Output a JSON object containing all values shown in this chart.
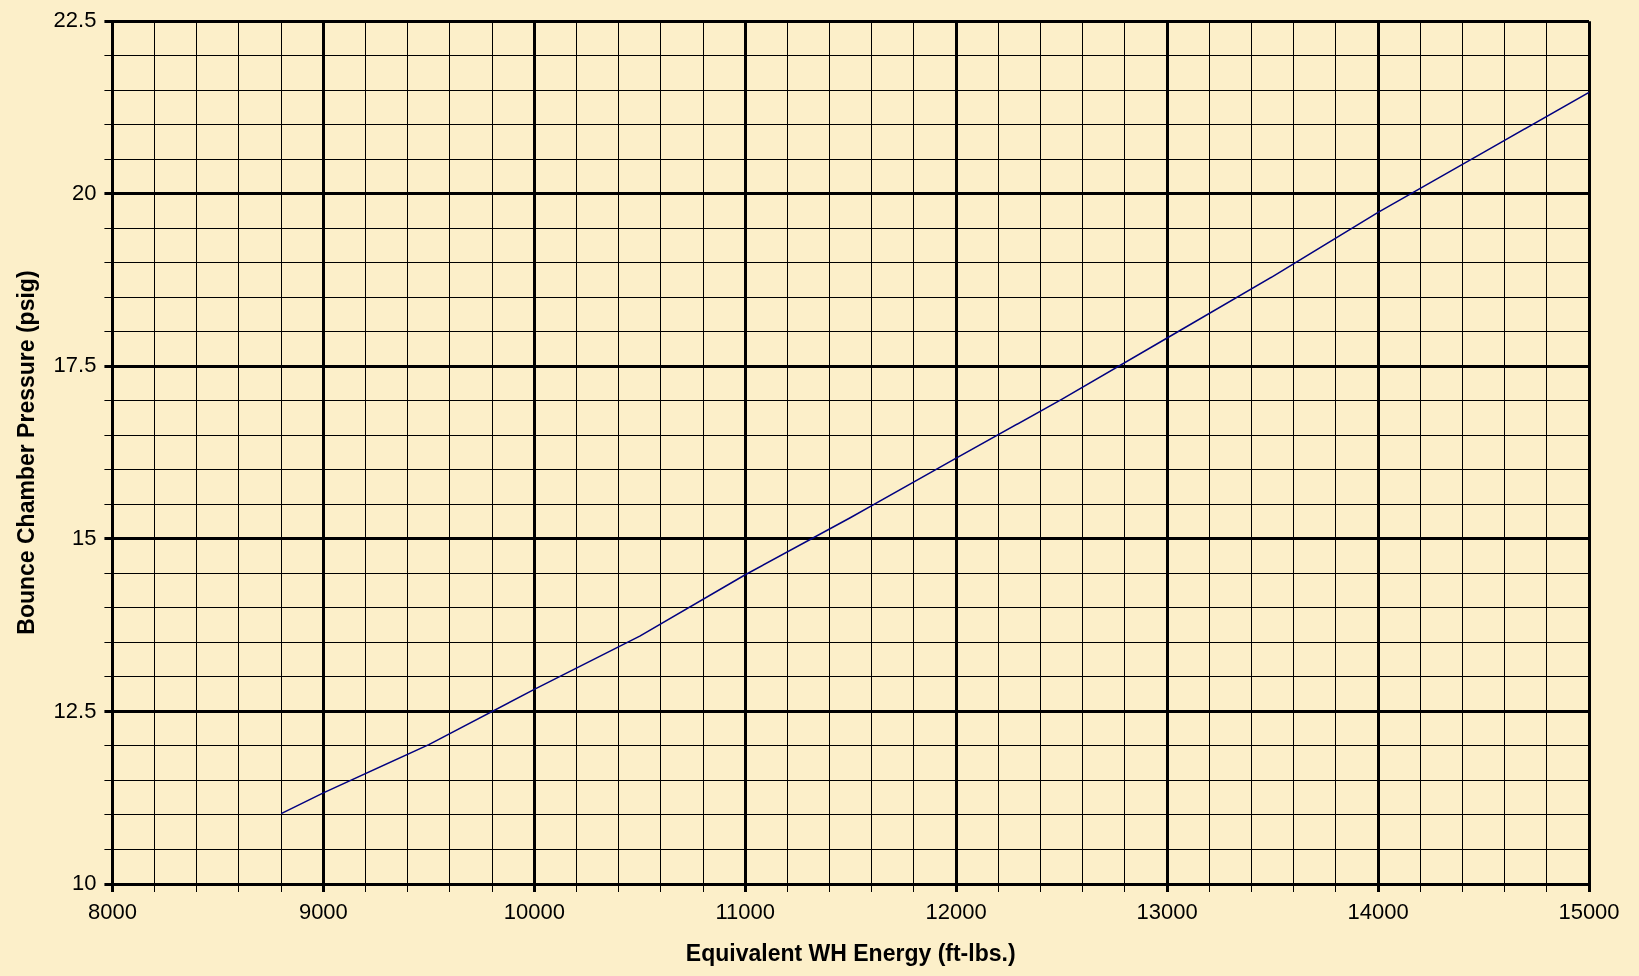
{
  "chart_data": {
    "type": "line",
    "xlabel": "Equivalent WH Energy (ft-lbs.)",
    "ylabel": "Bounce Chamber Pressure (psig)",
    "x": [
      8800,
      9000,
      9500,
      10000,
      10500,
      11000,
      11500,
      12000,
      12500,
      13000,
      13500,
      14000,
      14500,
      15000
    ],
    "series": [
      {
        "color": "#000080",
        "values": [
          11.02,
          11.32,
          12.02,
          12.82,
          13.59,
          14.48,
          15.31,
          16.17,
          17.02,
          17.91,
          18.8,
          19.73,
          20.6,
          21.47
        ]
      }
    ],
    "xlim": [
      8000,
      15000
    ],
    "xticks": [
      8000,
      {
        "value": 8200,
        "label": null
      },
      {
        "value": 8400,
        "label": null
      },
      {
        "value": 8600,
        "label": null
      },
      {
        "value": 8800,
        "label": null
      },
      9000,
      {
        "value": 9200,
        "label": null
      },
      {
        "value": 9400,
        "label": null
      },
      {
        "value": 9600,
        "label": null
      },
      {
        "value": 9800,
        "label": null
      },
      10000,
      {
        "value": 10200,
        "label": null
      },
      {
        "value": 10400,
        "label": null
      },
      {
        "value": 10600,
        "label": null
      },
      {
        "value": 10800,
        "label": null
      },
      11000,
      {
        "value": 11200,
        "label": null
      },
      {
        "value": 11400,
        "label": null
      },
      {
        "value": 11600,
        "label": null
      },
      {
        "value": 11800,
        "label": null
      },
      12000,
      {
        "value": 12200,
        "label": null
      },
      {
        "value": 12400,
        "label": null
      },
      {
        "value": 12600,
        "label": null
      },
      {
        "value": 12800,
        "label": null
      },
      13000,
      {
        "value": 13200,
        "label": null
      },
      {
        "value": 13400,
        "label": null
      },
      {
        "value": 13600,
        "label": null
      },
      {
        "value": 13800,
        "label": null
      },
      14000,
      {
        "value": 14200,
        "label": null
      },
      {
        "value": 14400,
        "label": null
      },
      {
        "value": 14600,
        "label": null
      },
      {
        "value": 14800,
        "label": null
      },
      15000
    ],
    "ylim": [
      10,
      22.5
    ],
    "yticks": [
      10,
      {
        "value": 10.5,
        "label": null
      },
      {
        "value": 11,
        "label": null
      },
      {
        "value": 11.5,
        "label": null
      },
      {
        "value": 12,
        "label": null
      },
      12.5,
      {
        "value": 13,
        "label": null
      },
      {
        "value": 13.5,
        "label": null
      },
      {
        "value": 14,
        "label": null
      },
      {
        "value": 14.5,
        "label": null
      },
      15,
      {
        "value": 15.5,
        "label": null
      },
      {
        "value": 16,
        "label": null
      },
      {
        "value": 16.5,
        "label": null
      },
      {
        "value": 17,
        "label": null
      },
      17.5,
      {
        "value": 18,
        "label": null
      },
      {
        "value": 18.5,
        "label": null
      },
      {
        "value": 19,
        "label": null
      },
      {
        "value": 19.5,
        "label": null
      },
      20,
      {
        "value": 20.5,
        "label": null
      },
      {
        "value": 21,
        "label": null
      },
      {
        "value": 21.5,
        "label": null
      },
      {
        "value": 22,
        "label": null
      },
      22.5
    ],
    "grid": true,
    "marker": "none",
    "line_style": "solid"
  }
}
